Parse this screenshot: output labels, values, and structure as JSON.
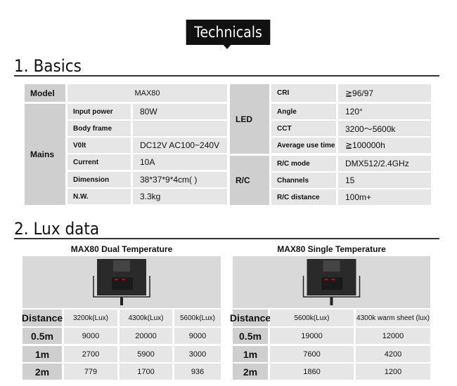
{
  "header": {
    "title": "Technicals"
  },
  "basics": {
    "heading": "1. Basics",
    "model_label": "Model",
    "model_value": "MAX80",
    "mains_label": "Mains",
    "mains": [
      {
        "label": "Input power",
        "value": "80W"
      },
      {
        "label": "Body frame",
        "value": ""
      },
      {
        "label": "V0lt",
        "value": "DC12V  AC100~240V"
      },
      {
        "label": "Current",
        "value": "10A"
      },
      {
        "label": "Dimension",
        "value": "38*37*9*4cm(        )"
      },
      {
        "label": "N.W.",
        "value": "3.3kg"
      }
    ],
    "led_label": "LED",
    "led": [
      {
        "label": "CRI",
        "value": "≧96/97"
      },
      {
        "label": "Angle",
        "value": "120°"
      },
      {
        "label": "CCT",
        "value": "3200～5600k"
      },
      {
        "label": "Average use time",
        "value": "≧100000h"
      }
    ],
    "rc_label": "R/C",
    "rc": [
      {
        "label": "R/C mode",
        "value": "DMX512/2.4GHz"
      },
      {
        "label": "Channels",
        "value": "15"
      },
      {
        "label": "R/C distance",
        "value": "100m+"
      }
    ]
  },
  "lux": {
    "heading": "2. Lux data",
    "dual": {
      "title": "MAX80  Dual Temperature",
      "headers": [
        "Distance",
        "3200k(Lux)",
        "4300k(Lux)",
        "5600k(Lux)"
      ],
      "rows": [
        [
          "0.5m",
          "9000",
          "20000",
          "9000"
        ],
        [
          "1m",
          "2700",
          "5900",
          "3000"
        ],
        [
          "2m",
          "779",
          "1700",
          "936"
        ]
      ]
    },
    "single": {
      "title": "MAX80 Single Temperature",
      "headers": [
        "Distance",
        "5600k(Lux)",
        "4300k warm sheet (lux)"
      ],
      "rows": [
        [
          "0.5m",
          "19000",
          "12000"
        ],
        [
          "1m",
          "7600",
          "4200"
        ],
        [
          "2m",
          "1860",
          "1200"
        ]
      ]
    }
  }
}
